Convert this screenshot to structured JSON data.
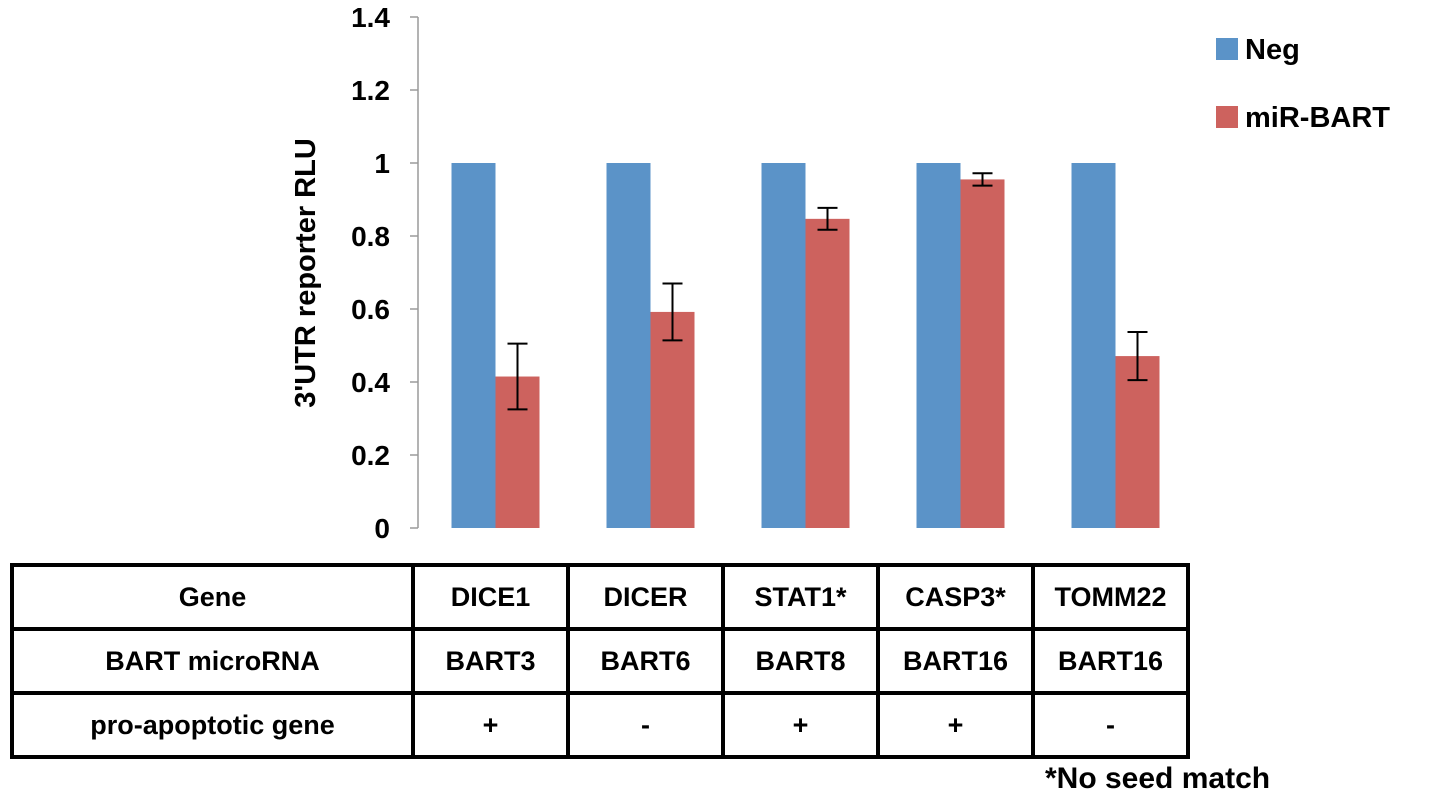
{
  "chart_data": {
    "type": "bar",
    "categories": [
      "DICE1",
      "DICER",
      "STAT1*",
      "CASP3*",
      "TOMM22"
    ],
    "ylabel": "3'UTR reporter RLU",
    "ylim": [
      0,
      1.4
    ],
    "yticks": [
      0,
      0.2,
      0.4,
      0.6,
      0.8,
      1,
      1.2,
      1.4
    ],
    "ytick_labels": [
      "0",
      "0.2",
      "0.4",
      "0.6",
      "0.8",
      "1",
      "1.2",
      "1.4"
    ],
    "grid": false,
    "legend_position": "top-right",
    "series": [
      {
        "name": "Neg",
        "color": "#5b93c8",
        "values": [
          1,
          1,
          1,
          1,
          1
        ]
      },
      {
        "name": "miR-BART",
        "color": "#cd625e",
        "values": [
          0.415,
          0.592,
          0.847,
          0.955,
          0.471
        ],
        "error": [
          0.09,
          0.078,
          0.03,
          0.017,
          0.066
        ]
      }
    ]
  },
  "table": {
    "rows": [
      {
        "header": "Gene",
        "cells": [
          "DICE1",
          "DICER",
          "STAT1*",
          "CASP3*",
          "TOMM22"
        ]
      },
      {
        "header": "BART microRNA",
        "cells": [
          "BART3",
          "BART6",
          "BART8",
          "BART16",
          "BART16"
        ]
      },
      {
        "header": "pro-apoptotic gene",
        "cells": [
          "+",
          "-",
          "+",
          "+",
          "-"
        ]
      }
    ]
  },
  "footnote": "*No seed match"
}
